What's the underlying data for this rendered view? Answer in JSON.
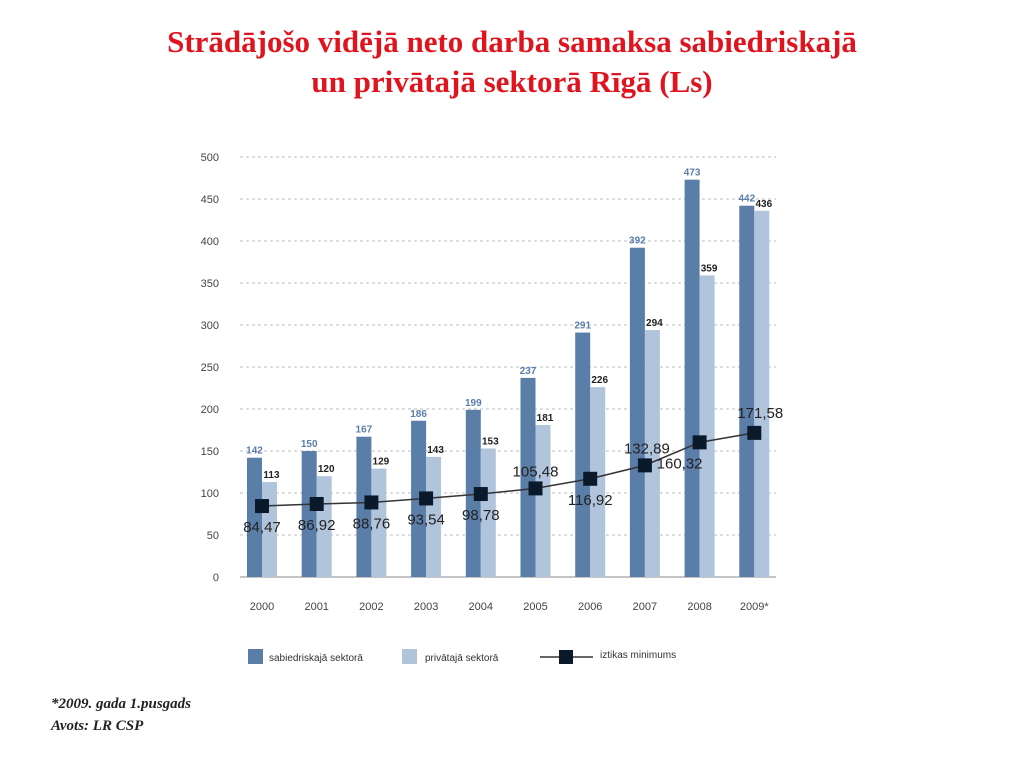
{
  "title": {
    "line1": "Strādājošo vidējā neto darba samaksa sabiedriskajā",
    "line2": "un privātajā sektorā Rīgā (Ls)"
  },
  "footnote": "*2009. gada 1.pusgads",
  "source": "Avots: LR CSP",
  "colors": {
    "title": "#e0141e",
    "public": "#5b7ea9",
    "private": "#b0c4dc",
    "line": "#333333",
    "marker": "#0b1a2a"
  },
  "chart_data": {
    "type": "bar",
    "categories": [
      "2000",
      "2001",
      "2002",
      "2003",
      "2004",
      "2005",
      "2006",
      "2007",
      "2008",
      "2009*"
    ],
    "ylim": [
      0,
      500
    ],
    "yticks": [
      "0",
      "50",
      "100",
      "150",
      "200",
      "250",
      "300",
      "350",
      "400",
      "450",
      "500"
    ],
    "grid": true,
    "legend_position": "bottom",
    "series": [
      {
        "name": "sabiedriskajā sektorā",
        "type": "bar",
        "values": [
          142,
          150,
          167,
          186,
          199,
          237,
          291,
          392,
          473,
          442
        ],
        "labels": [
          "142",
          "150",
          "167",
          "186",
          "199",
          "237",
          "291",
          "392",
          "473",
          "442"
        ]
      },
      {
        "name": "privātajā sektorā",
        "type": "bar",
        "values": [
          113,
          120,
          129,
          143,
          153,
          181,
          226,
          294,
          359,
          436
        ],
        "labels": [
          "113",
          "120",
          "129",
          "143",
          "153",
          "181",
          "226",
          "294",
          "359",
          "436"
        ]
      },
      {
        "name": "iztikas minimums",
        "type": "line",
        "values": [
          84.47,
          86.92,
          88.76,
          93.54,
          98.78,
          105.48,
          116.92,
          132.89,
          160.32,
          171.58
        ],
        "labels": [
          "84,47",
          "86,92",
          "88,76",
          "93,54",
          "98,78",
          "105,48",
          "116,92",
          "132,89",
          "160,32",
          "171,58"
        ]
      }
    ]
  }
}
